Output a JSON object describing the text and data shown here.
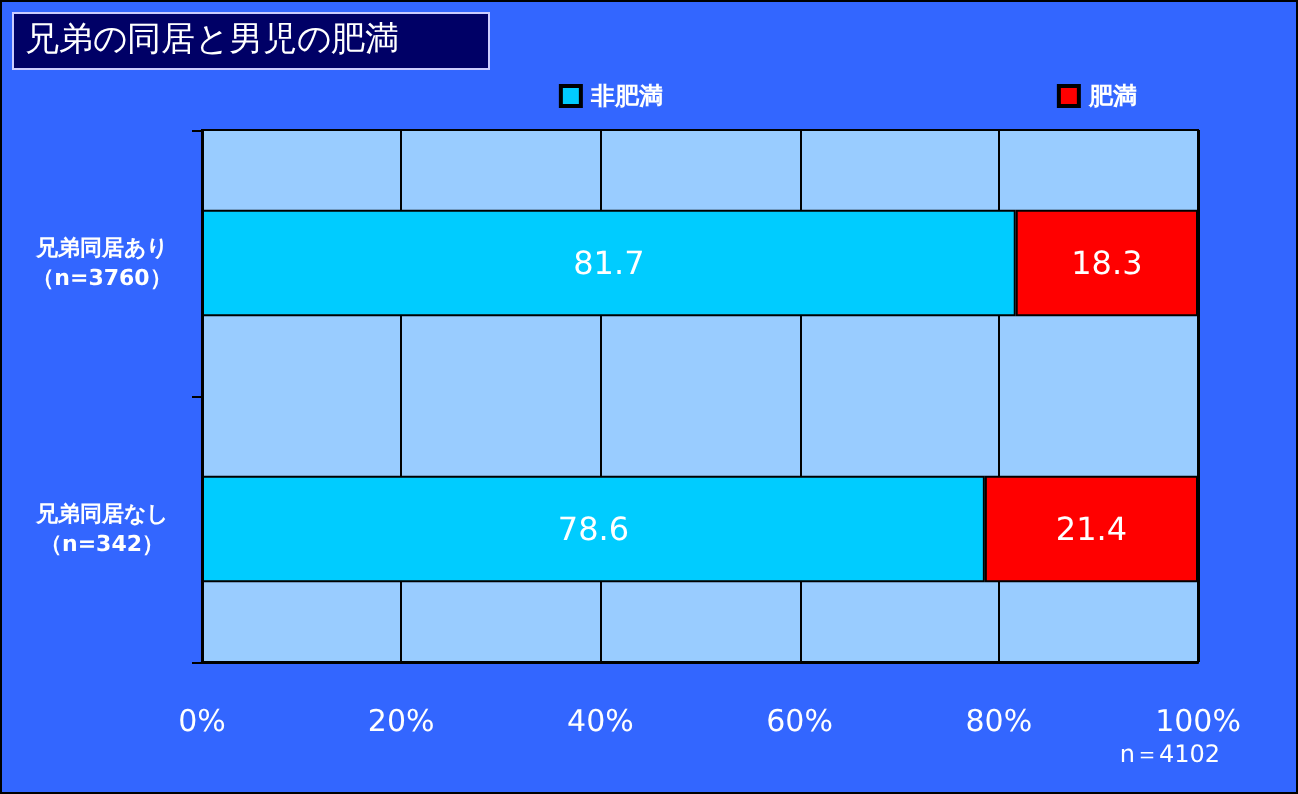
{
  "chart_data": {
    "type": "bar",
    "title": "兄弟の同居と男児の肥満",
    "orientation": "horizontal",
    "stacked": true,
    "categories": [
      "兄弟同居あり（n=3760）",
      "兄弟同居なし（n=342）"
    ],
    "series": [
      {
        "name": "非肥満",
        "color": "#00ccff",
        "values": [
          81.7,
          78.6
        ]
      },
      {
        "name": "肥満",
        "color": "#ff0000",
        "values": [
          18.3,
          21.4
        ]
      }
    ],
    "xlim": [
      0,
      100
    ],
    "xticks": [
      {
        "value": 0,
        "label": "0%"
      },
      {
        "value": 20,
        "label": "20%"
      },
      {
        "value": 40,
        "label": "40%"
      },
      {
        "value": 60,
        "label": "60%"
      },
      {
        "value": 80,
        "label": "80%"
      },
      {
        "value": 100,
        "label": "100%"
      }
    ],
    "data_labels": true,
    "grid": "x",
    "legend": "top",
    "annotations": [
      "n＝4102"
    ]
  }
}
